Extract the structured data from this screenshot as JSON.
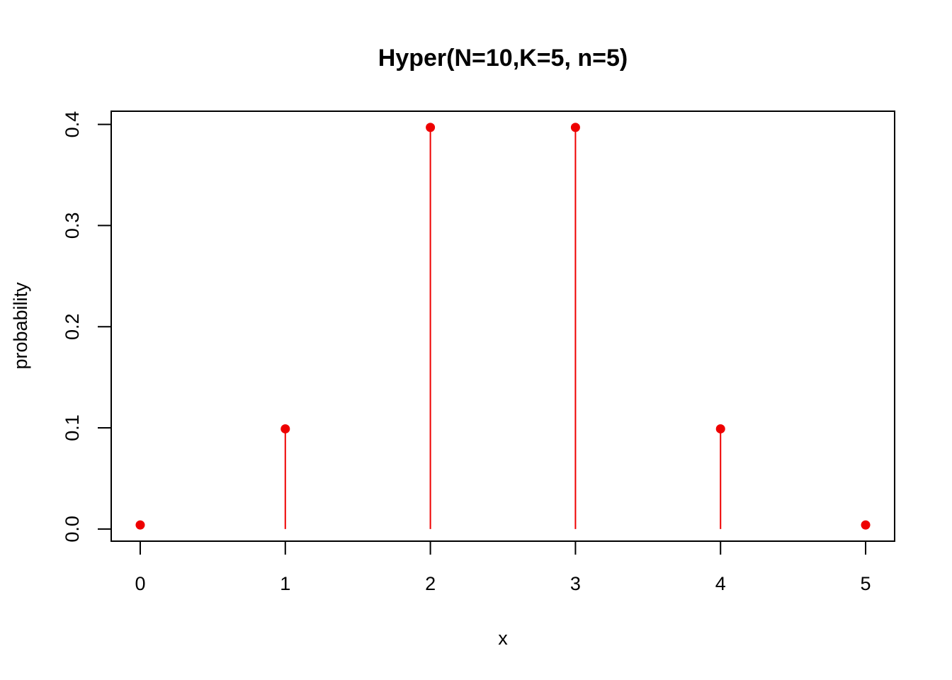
{
  "chart_data": {
    "type": "scatter",
    "style": "stem",
    "title": "Hyper(N=10,K=5, n=5)",
    "xlabel": "x",
    "ylabel": "probability",
    "x": [
      0,
      1,
      2,
      3,
      4,
      5
    ],
    "values": [
      0.004,
      0.099,
      0.397,
      0.397,
      0.099,
      0.004
    ],
    "xlim": [
      -0.2,
      5.2
    ],
    "ylim": [
      -0.012,
      0.413
    ],
    "x_ticks": [
      0,
      1,
      2,
      3,
      4,
      5
    ],
    "x_tick_labels": [
      "0",
      "1",
      "2",
      "3",
      "4",
      "5"
    ],
    "y_ticks": [
      0.0,
      0.1,
      0.2,
      0.3,
      0.4
    ],
    "y_tick_labels": [
      "0.0",
      "0.1",
      "0.2",
      "0.3",
      "0.4"
    ],
    "grid": false,
    "legend": "none",
    "color": "#ee0000"
  }
}
